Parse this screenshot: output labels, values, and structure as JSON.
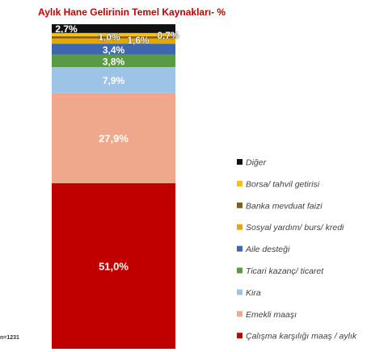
{
  "chart_data": {
    "type": "stacked-bar",
    "title": "Aylık Hane Gelirinin Temel Kaynakları- %",
    "unit": "%",
    "series": [
      {
        "name": "Çalışma karşılığı maaş / aylık",
        "label": "51,0%",
        "value": 51.0,
        "color": "#c00000"
      },
      {
        "name": "Emekli maaşı",
        "label": "27,9%",
        "value": 27.9,
        "color": "#f0a88c"
      },
      {
        "name": "Kira",
        "label": "7,9%",
        "value": 7.9,
        "color": "#9dc3e6"
      },
      {
        "name": "Ticari kazanç/ ticaret",
        "label": "3,8%",
        "value": 3.8,
        "color": "#5b9a45"
      },
      {
        "name": "Aile desteği",
        "label": "3,4%",
        "value": 3.4,
        "color": "#3e67ad"
      },
      {
        "name": "Sosyal yardım/ burs/ kredi",
        "label": "1,6%",
        "value": 1.6,
        "color": "#e6a800"
      },
      {
        "name": "Banka mevduat faizi",
        "label": "0,7%",
        "value": 0.7,
        "color": "#7f5f1f"
      },
      {
        "name": "Borsa/ tahvil getirisi",
        "label": "1,0%",
        "value": 1.0,
        "color": "#ffc000"
      },
      {
        "name": "Diğer",
        "label": "2,7%",
        "value": 2.7,
        "color": "#111111"
      }
    ],
    "legend_position": "right",
    "note": "n=1231"
  }
}
